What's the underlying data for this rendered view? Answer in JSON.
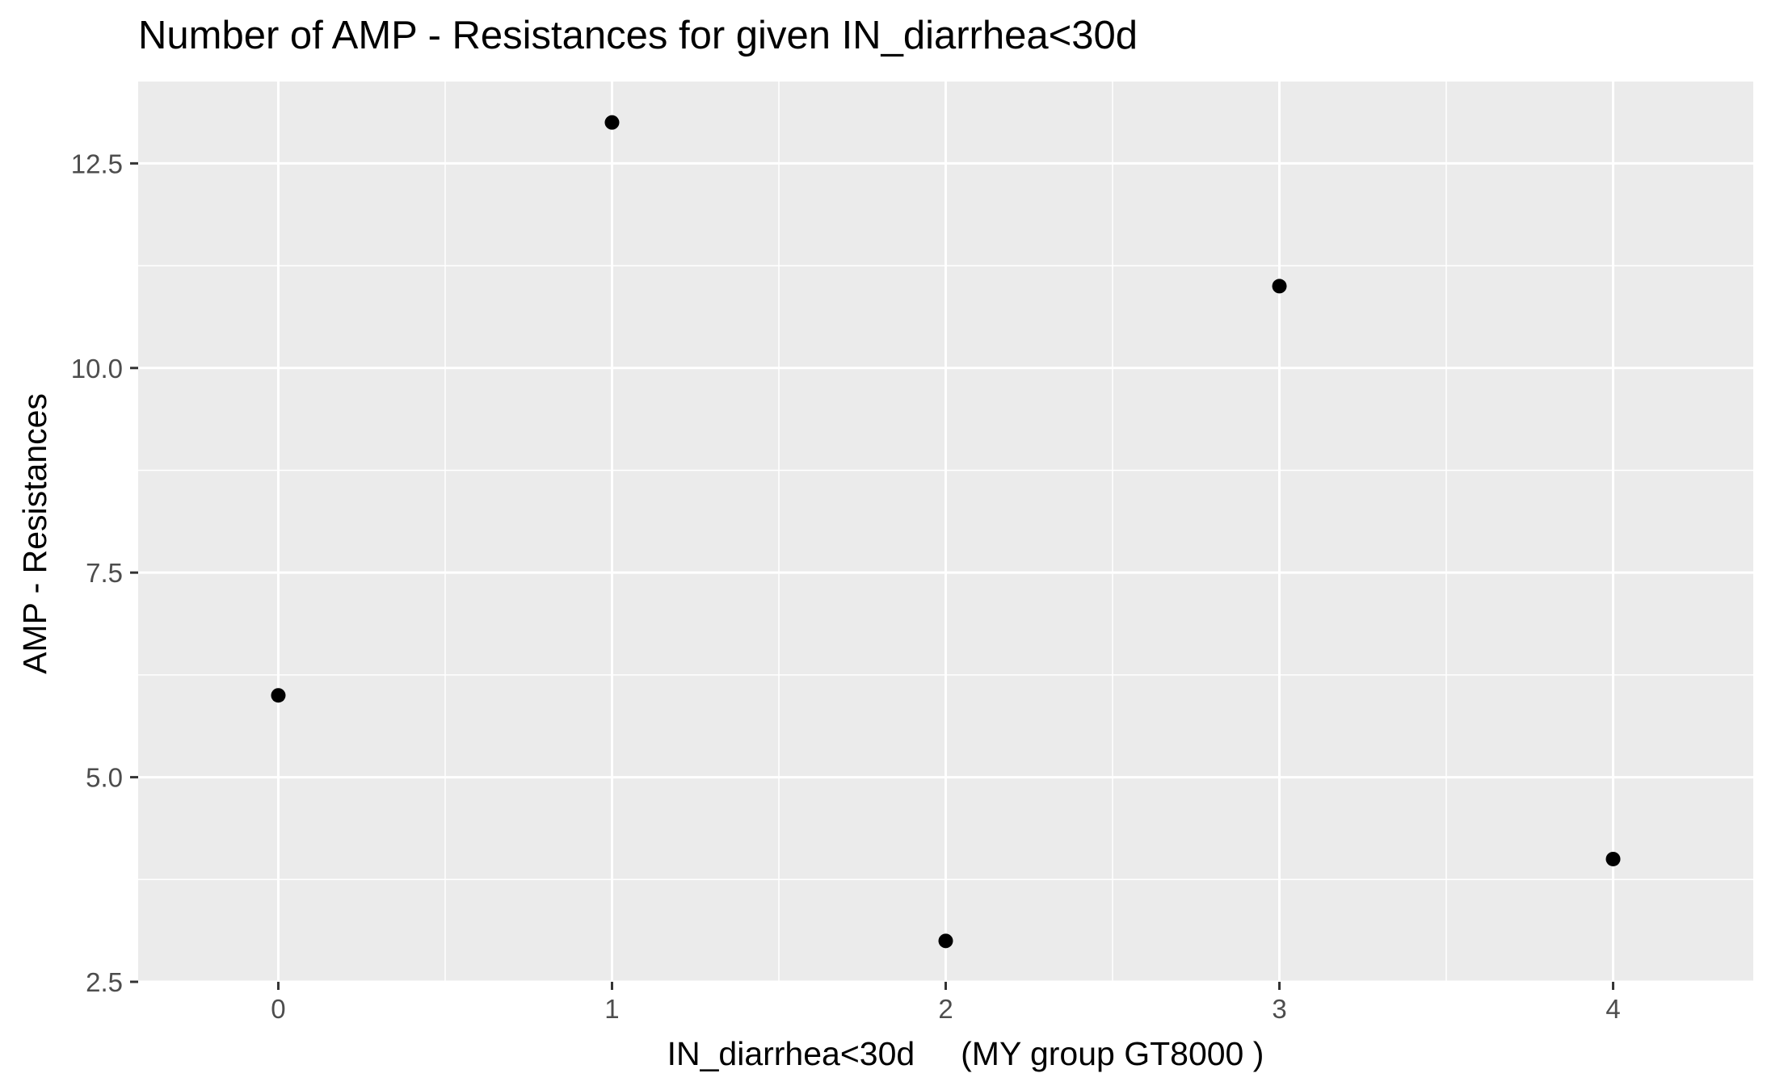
{
  "chart_data": {
    "type": "scatter",
    "title": "Number of AMP - Resistances for given IN_diarrhea<30d",
    "xlabel": "IN_diarrhea<30d     (MY group GT8000 )",
    "ylabel": "AMP - Resistances",
    "x": [
      0,
      1,
      2,
      3,
      4
    ],
    "y": [
      6,
      13,
      3,
      11,
      4
    ],
    "xlim": [
      -0.42,
      4.42
    ],
    "ylim": [
      2.5,
      13.5
    ],
    "x_ticks": [
      0,
      1,
      2,
      3,
      4
    ],
    "x_tick_labels": [
      "0",
      "1",
      "2",
      "3",
      "4"
    ],
    "y_ticks": [
      2.5,
      5.0,
      7.5,
      10.0,
      12.5
    ],
    "y_tick_labels": [
      "2.5",
      "5.0",
      "7.5",
      "10.0",
      "12.5"
    ],
    "grid": true,
    "panel_color": "#ebebeb",
    "grid_color": "#ffffff",
    "point_color": "#000000"
  }
}
